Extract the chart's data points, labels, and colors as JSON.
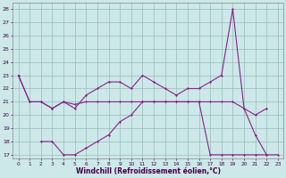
{
  "xlabel": "Windchill (Refroidissement éolien,°C)",
  "x": [
    0,
    1,
    2,
    3,
    4,
    5,
    6,
    7,
    8,
    9,
    10,
    11,
    12,
    13,
    14,
    15,
    16,
    17,
    18,
    19,
    20,
    21,
    22,
    23
  ],
  "line_top": [
    23,
    21,
    21,
    20.5,
    21,
    20.5,
    21.5,
    22,
    22.5,
    22.5,
    22,
    23,
    22.5,
    22,
    21.5,
    22,
    22,
    22.5,
    23,
    28,
    20.5,
    18.5,
    17,
    null
  ],
  "line_mid": [
    23,
    21,
    21,
    20.5,
    21,
    20.8,
    21,
    21,
    21,
    21,
    21,
    21,
    21,
    21,
    21,
    21,
    21,
    21,
    21,
    21,
    20.5,
    20,
    20.5,
    null
  ],
  "line_bot": [
    null,
    null,
    18,
    18,
    17,
    17,
    17.5,
    18,
    18.5,
    19.5,
    20,
    21,
    21,
    21,
    21,
    21,
    21,
    17,
    17,
    17,
    17,
    17,
    17,
    17
  ],
  "bg_color": "#cce8e8",
  "line_color": "#882288",
  "grid_color": "#99bbbb",
  "ylim_min": 17,
  "ylim_max": 28,
  "yticks": [
    17,
    18,
    19,
    20,
    21,
    22,
    23,
    24,
    25,
    26,
    27,
    28
  ],
  "xticks": [
    0,
    1,
    2,
    3,
    4,
    5,
    6,
    7,
    8,
    9,
    10,
    11,
    12,
    13,
    14,
    15,
    16,
    17,
    18,
    19,
    20,
    21,
    22,
    23
  ]
}
